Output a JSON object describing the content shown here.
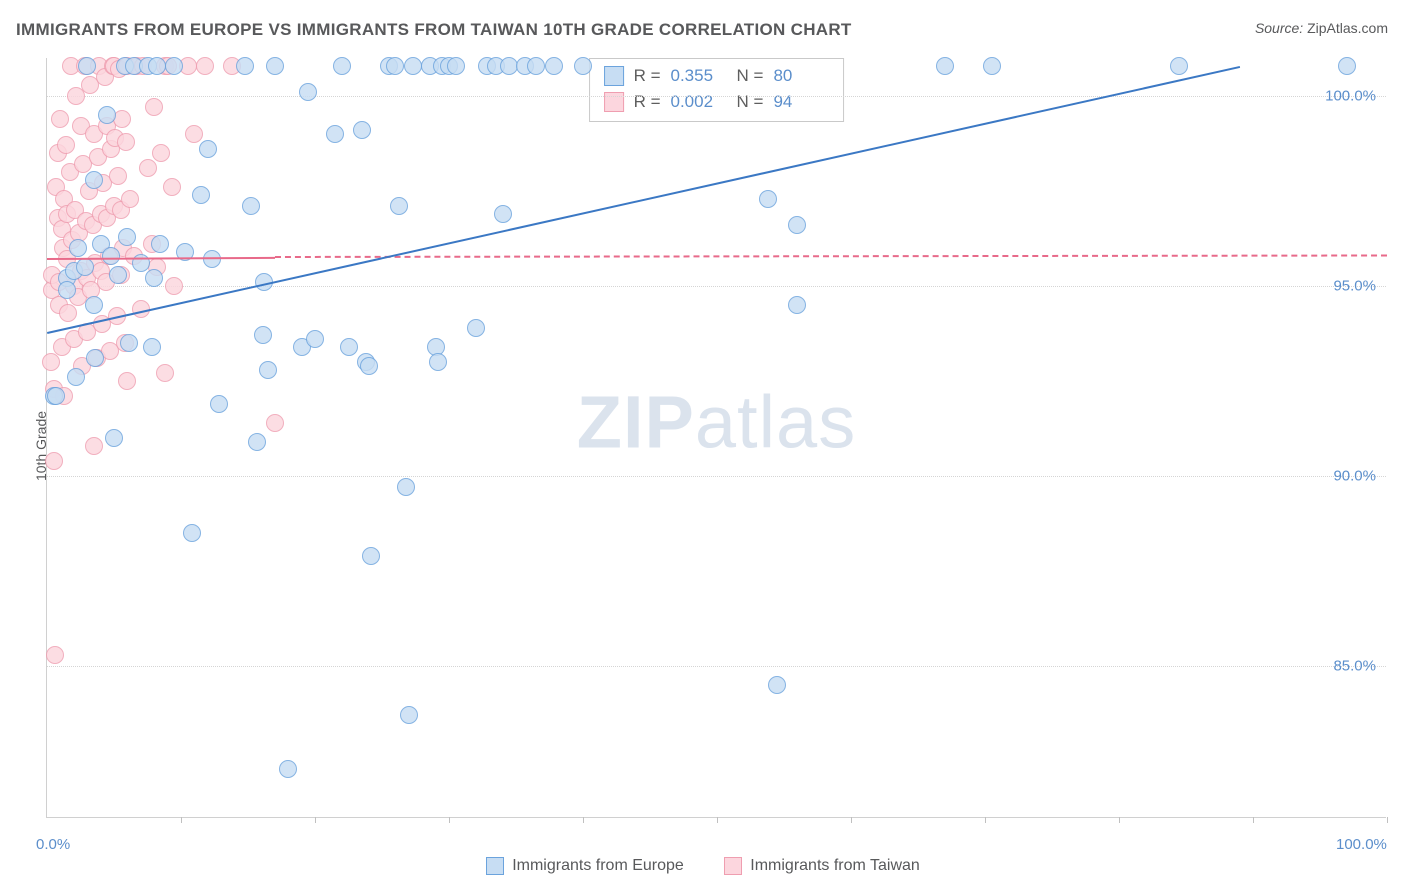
{
  "title": "IMMIGRANTS FROM EUROPE VS IMMIGRANTS FROM TAIWAN 10TH GRADE CORRELATION CHART",
  "source_label": "Source:",
  "source_value": "ZipAtlas.com",
  "ylabel": "10th Grade",
  "watermark_bold": "ZIP",
  "watermark_rest": "atlas",
  "chart": {
    "type": "scatter",
    "xlim": [
      0,
      100
    ],
    "ylim": [
      81,
      101
    ],
    "y_ticks": [
      85.0,
      90.0,
      95.0,
      100.0
    ],
    "y_tick_labels": [
      "85.0%",
      "90.0%",
      "95.0%",
      "100.0%"
    ],
    "x_ticks": [
      10,
      20,
      30,
      40,
      50,
      60,
      70,
      80,
      90,
      100
    ],
    "x_min_label": "0.0%",
    "x_max_label": "100.0%",
    "grid_color": "#d5d5d5",
    "axis_color": "#d0d0d0",
    "tick_label_color": "#5b8ecb",
    "background_color": "#ffffff",
    "marker_radius": 9,
    "series": [
      {
        "name": "Immigrants from Europe",
        "short": "europe",
        "fill": "#c7ddf3",
        "stroke": "#6ba3dd",
        "line_color": "#3b78c4",
        "line_width": 2.5,
        "line_dash": "solid",
        "R_label": "R =",
        "N_label": "N =",
        "R": "0.355",
        "N": "80",
        "trend": {
          "x1": 0,
          "y1": 93.8,
          "x2": 89,
          "y2": 100.8
        },
        "points": [
          [
            0.5,
            92.1
          ],
          [
            0.7,
            92.1
          ],
          [
            1.5,
            95.2
          ],
          [
            1.5,
            94.9
          ],
          [
            2.0,
            95.4
          ],
          [
            2.2,
            92.6
          ],
          [
            2.3,
            96.0
          ],
          [
            2.8,
            95.5
          ],
          [
            3.0,
            100.8
          ],
          [
            3.5,
            97.8
          ],
          [
            3.5,
            94.5
          ],
          [
            3.6,
            93.1
          ],
          [
            4.0,
            96.1
          ],
          [
            4.5,
            99.5
          ],
          [
            4.8,
            95.8
          ],
          [
            5.0,
            91.0
          ],
          [
            5.3,
            95.3
          ],
          [
            5.8,
            100.8
          ],
          [
            6.0,
            96.3
          ],
          [
            6.1,
            93.5
          ],
          [
            6.5,
            100.8
          ],
          [
            7.0,
            95.6
          ],
          [
            7.5,
            100.8
          ],
          [
            7.8,
            93.4
          ],
          [
            8.0,
            95.2
          ],
          [
            8.2,
            100.8
          ],
          [
            8.4,
            96.1
          ],
          [
            9.5,
            100.8
          ],
          [
            10.3,
            95.9
          ],
          [
            10.8,
            88.5
          ],
          [
            11.5,
            97.4
          ],
          [
            12.0,
            98.6
          ],
          [
            12.3,
            95.7
          ],
          [
            12.8,
            91.9
          ],
          [
            14.8,
            100.8
          ],
          [
            15.2,
            97.1
          ],
          [
            15.7,
            90.9
          ],
          [
            16.1,
            93.7
          ],
          [
            16.2,
            95.1
          ],
          [
            16.5,
            92.8
          ],
          [
            17.0,
            100.8
          ],
          [
            18.0,
            82.3
          ],
          [
            19.0,
            93.4
          ],
          [
            19.5,
            100.1
          ],
          [
            20.0,
            93.6
          ],
          [
            21.5,
            99.0
          ],
          [
            22.0,
            100.8
          ],
          [
            22.5,
            93.4
          ],
          [
            23.5,
            99.1
          ],
          [
            23.8,
            93.0
          ],
          [
            24.0,
            92.9
          ],
          [
            24.2,
            87.9
          ],
          [
            25.5,
            100.8
          ],
          [
            26.0,
            100.8
          ],
          [
            26.3,
            97.1
          ],
          [
            26.8,
            89.7
          ],
          [
            27.0,
            83.7
          ],
          [
            27.3,
            100.8
          ],
          [
            28.6,
            100.8
          ],
          [
            29.0,
            93.4
          ],
          [
            29.2,
            93.0
          ],
          [
            29.5,
            100.8
          ],
          [
            30.0,
            100.8
          ],
          [
            30.5,
            100.8
          ],
          [
            32.0,
            93.9
          ],
          [
            32.8,
            100.8
          ],
          [
            33.5,
            100.8
          ],
          [
            34.0,
            96.9
          ],
          [
            34.5,
            100.8
          ],
          [
            35.7,
            100.8
          ],
          [
            36.5,
            100.8
          ],
          [
            37.8,
            100.8
          ],
          [
            40.0,
            100.8
          ],
          [
            53.8,
            97.3
          ],
          [
            54.5,
            84.5
          ],
          [
            56.0,
            94.5
          ],
          [
            56.0,
            96.6
          ],
          [
            67.0,
            100.8
          ],
          [
            70.5,
            100.8
          ],
          [
            84.5,
            100.8
          ],
          [
            97.0,
            100.8
          ]
        ]
      },
      {
        "name": "Immigrants from Taiwan",
        "short": "taiwan",
        "fill": "#fcd6de",
        "stroke": "#ef9eb0",
        "line_color": "#e86a8a",
        "line_width": 2.5,
        "line_dash": "dashed",
        "R_label": "R =",
        "N_label": "N =",
        "R": "0.002",
        "N": "94",
        "trend_solid": {
          "x1": 0,
          "y1": 95.75,
          "x2": 17,
          "y2": 95.78
        },
        "trend": {
          "x1": 17,
          "y1": 95.78,
          "x2": 100,
          "y2": 95.82
        },
        "points": [
          [
            0.3,
            93.0
          ],
          [
            0.4,
            94.9
          ],
          [
            0.4,
            95.3
          ],
          [
            0.5,
            92.3
          ],
          [
            0.5,
            90.4
          ],
          [
            0.6,
            85.3
          ],
          [
            0.7,
            97.6
          ],
          [
            0.8,
            96.8
          ],
          [
            0.8,
            98.5
          ],
          [
            0.9,
            95.1
          ],
          [
            0.9,
            94.5
          ],
          [
            1.0,
            99.4
          ],
          [
            1.1,
            93.4
          ],
          [
            1.1,
            96.5
          ],
          [
            1.2,
            96.0
          ],
          [
            1.3,
            92.1
          ],
          [
            1.3,
            97.3
          ],
          [
            1.4,
            98.7
          ],
          [
            1.5,
            96.9
          ],
          [
            1.5,
            95.7
          ],
          [
            1.6,
            94.3
          ],
          [
            1.7,
            98.0
          ],
          [
            1.8,
            100.8
          ],
          [
            1.9,
            96.2
          ],
          [
            2.0,
            95.0
          ],
          [
            2.0,
            93.6
          ],
          [
            2.1,
            97.0
          ],
          [
            2.2,
            100.0
          ],
          [
            2.3,
            94.7
          ],
          [
            2.4,
            96.4
          ],
          [
            2.5,
            99.2
          ],
          [
            2.5,
            95.4
          ],
          [
            2.6,
            92.9
          ],
          [
            2.7,
            98.2
          ],
          [
            2.8,
            100.8
          ],
          [
            2.9,
            96.7
          ],
          [
            3.0,
            95.2
          ],
          [
            3.0,
            93.8
          ],
          [
            3.1,
            97.5
          ],
          [
            3.2,
            100.3
          ],
          [
            3.3,
            94.9
          ],
          [
            3.4,
            96.6
          ],
          [
            3.5,
            99.0
          ],
          [
            3.5,
            90.8
          ],
          [
            3.6,
            95.6
          ],
          [
            3.7,
            93.1
          ],
          [
            3.8,
            98.4
          ],
          [
            3.9,
            100.8
          ],
          [
            4.0,
            96.9
          ],
          [
            4.0,
            95.4
          ],
          [
            4.1,
            94.0
          ],
          [
            4.2,
            97.7
          ],
          [
            4.3,
            100.5
          ],
          [
            4.4,
            95.1
          ],
          [
            4.5,
            96.8
          ],
          [
            4.5,
            99.2
          ],
          [
            4.6,
            95.8
          ],
          [
            4.7,
            93.3
          ],
          [
            4.8,
            98.6
          ],
          [
            4.9,
            100.8
          ],
          [
            5.0,
            97.1
          ],
          [
            5.0,
            100.8
          ],
          [
            5.1,
            98.9
          ],
          [
            5.2,
            94.2
          ],
          [
            5.3,
            97.9
          ],
          [
            5.4,
            100.7
          ],
          [
            5.5,
            95.3
          ],
          [
            5.5,
            97.0
          ],
          [
            5.6,
            99.4
          ],
          [
            5.7,
            96.0
          ],
          [
            5.8,
            93.5
          ],
          [
            5.9,
            98.8
          ],
          [
            6.0,
            100.8
          ],
          [
            6.0,
            92.5
          ],
          [
            6.2,
            97.3
          ],
          [
            6.5,
            95.8
          ],
          [
            6.7,
            100.8
          ],
          [
            7.0,
            94.4
          ],
          [
            7.2,
            100.8
          ],
          [
            7.5,
            98.1
          ],
          [
            7.8,
            96.1
          ],
          [
            8.0,
            99.7
          ],
          [
            8.2,
            95.5
          ],
          [
            8.5,
            98.5
          ],
          [
            8.8,
            92.7
          ],
          [
            8.8,
            100.8
          ],
          [
            9.0,
            100.8
          ],
          [
            9.3,
            97.6
          ],
          [
            9.5,
            95.0
          ],
          [
            10.5,
            100.8
          ],
          [
            11.0,
            99.0
          ],
          [
            11.8,
            100.8
          ],
          [
            13.8,
            100.8
          ],
          [
            17.0,
            91.4
          ]
        ]
      }
    ]
  },
  "legend_bottom": [
    {
      "label": "Immigrants from Europe",
      "fill": "#c7ddf3",
      "stroke": "#6ba3dd"
    },
    {
      "label": "Immigrants from Taiwan",
      "fill": "#fcd6de",
      "stroke": "#ef9eb0"
    }
  ]
}
